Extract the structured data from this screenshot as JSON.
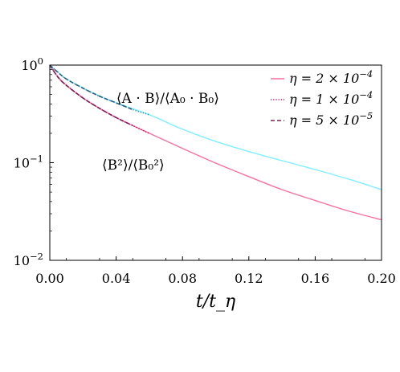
{
  "chart_data": {
    "type": "line",
    "xlabel": "t/t_η",
    "x_scale": "linear",
    "y_scale": "log",
    "xlim": [
      0.0,
      0.2
    ],
    "ylim": [
      0.01,
      1.0
    ],
    "x_ticks": [
      0.0,
      0.04,
      0.08,
      0.12,
      0.16,
      0.2
    ],
    "x_tick_labels": [
      "0.00",
      "0.04",
      "0.08",
      "0.12",
      "0.16",
      "0.20"
    ],
    "y_ticks": [
      0.01,
      0.1,
      1.0
    ],
    "y_tick_labels": [
      "10^−2",
      "10^−1",
      "10^0"
    ],
    "grid": false,
    "legend_position": "top-right",
    "legend": [
      {
        "label": "η = 2 × 10^−4",
        "style": "solid",
        "color": "#ff6fa0"
      },
      {
        "label": "η = 1 × 10^−4",
        "style": "dotted",
        "color": "#d6005a"
      },
      {
        "label": "η = 5 × 10^−5",
        "style": "dashed",
        "color": "#7a1f5c"
      }
    ],
    "annotations": [
      {
        "text": "⟨A · B⟩/⟨A₀ · B₀⟩",
        "label_for": "helicity"
      },
      {
        "text": "⟨B²⟩/⟨B₀²⟩",
        "label_for": "energy"
      }
    ],
    "series": [
      {
        "legend_ref": 0,
        "quantity": "energy",
        "style": "solid",
        "color": "#ff6fa0",
        "x": [
          0.0,
          0.005,
          0.01,
          0.02,
          0.03,
          0.04,
          0.06,
          0.08,
          0.1,
          0.12,
          0.14,
          0.16,
          0.18,
          0.2
        ],
        "y": [
          1.0,
          0.75,
          0.62,
          0.46,
          0.36,
          0.29,
          0.2,
          0.14,
          0.099,
          0.072,
          0.053,
          0.041,
          0.032,
          0.026
        ]
      },
      {
        "legend_ref": 1,
        "quantity": "energy",
        "style": "dotted",
        "color": "#d6005a",
        "x": [
          0.0,
          0.005,
          0.01,
          0.02,
          0.03,
          0.04,
          0.05,
          0.06
        ],
        "y": [
          1.0,
          0.75,
          0.62,
          0.46,
          0.36,
          0.29,
          0.24,
          0.2
        ]
      },
      {
        "legend_ref": 2,
        "quantity": "energy",
        "style": "dashed",
        "color": "#7a1f5c",
        "x": [
          0.0,
          0.005,
          0.01,
          0.02,
          0.03,
          0.04,
          0.05
        ],
        "y": [
          1.0,
          0.75,
          0.62,
          0.46,
          0.36,
          0.29,
          0.24
        ]
      },
      {
        "legend_ref": 0,
        "quantity": "helicity",
        "style": "solid",
        "color": "#7ff0ff",
        "x": [
          0.0,
          0.005,
          0.01,
          0.02,
          0.03,
          0.04,
          0.06,
          0.08,
          0.1,
          0.12,
          0.14,
          0.16,
          0.18,
          0.2
        ],
        "y": [
          1.0,
          0.84,
          0.72,
          0.58,
          0.48,
          0.41,
          0.31,
          0.22,
          0.165,
          0.13,
          0.105,
          0.085,
          0.068,
          0.053
        ]
      },
      {
        "legend_ref": 1,
        "quantity": "helicity",
        "style": "dotted",
        "color": "#1d8fb0",
        "x": [
          0.0,
          0.005,
          0.01,
          0.02,
          0.03,
          0.04,
          0.05,
          0.06
        ],
        "y": [
          1.0,
          0.84,
          0.72,
          0.58,
          0.48,
          0.41,
          0.35,
          0.31
        ]
      },
      {
        "legend_ref": 2,
        "quantity": "helicity",
        "style": "dashed",
        "color": "#2c5f7a",
        "x": [
          0.0,
          0.005,
          0.01,
          0.02,
          0.03,
          0.04,
          0.05
        ],
        "y": [
          1.0,
          0.84,
          0.72,
          0.58,
          0.48,
          0.41,
          0.35
        ]
      }
    ]
  }
}
